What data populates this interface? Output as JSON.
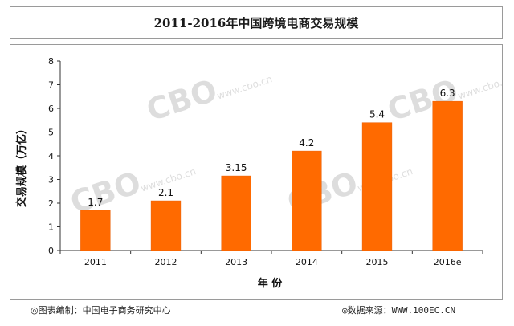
{
  "chart_data": {
    "type": "bar",
    "title": "2011-2016年中国跨境电商交易规模",
    "xlabel": "年 份",
    "ylabel": "交易规模（万亿）",
    "categories": [
      "2011",
      "2012",
      "2013",
      "2014",
      "2015",
      "2016e"
    ],
    "values": [
      1.7,
      2.1,
      3.15,
      4.2,
      5.4,
      6.3
    ],
    "data_labels": [
      "1.7",
      "2.1",
      "3.15",
      "4.2",
      "5.4",
      "6.3"
    ],
    "ylim": [
      0,
      8
    ],
    "yticks": [
      0,
      1,
      2,
      3,
      4,
      5,
      6,
      7,
      8
    ],
    "grid": false,
    "legend": "none",
    "bar_color": "#ff6a00",
    "bar_edge_color": "#e85c00"
  },
  "watermark": {
    "logo_text": "CBO",
    "url_text": "www.cbo.cn"
  },
  "footer": {
    "left": "◎图表编制：中国电子商务研究中心",
    "right": "◎数据来源：WWW.100EC.CN"
  }
}
